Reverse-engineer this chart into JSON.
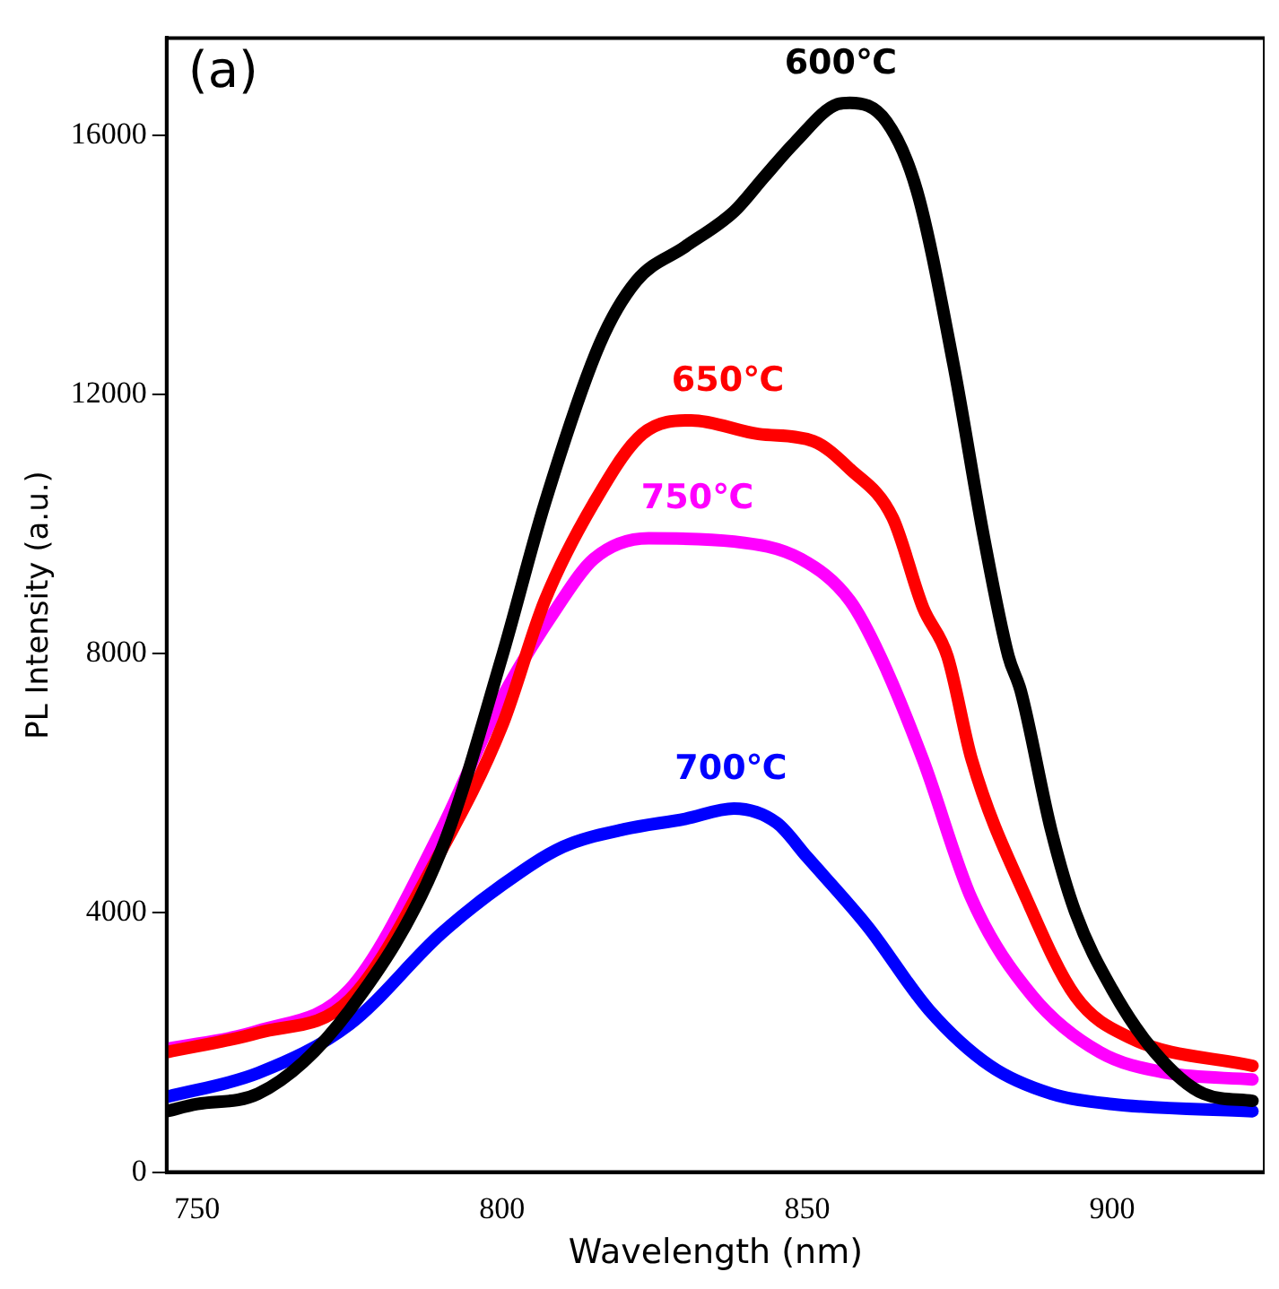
{
  "chart_data": {
    "type": "line",
    "xlabel": "Wavelength (nm)",
    "ylabel": "PL Intensity (a.u.)",
    "annotations": [
      "(a)"
    ],
    "xlim": [
      745,
      925
    ],
    "xticks": [
      750,
      800,
      850,
      900
    ],
    "ylim": [
      0,
      17500
    ],
    "yticks": [
      0,
      4000,
      8000,
      12000,
      16000
    ],
    "grid": false,
    "legend": false,
    "marker": "none",
    "line_style": "solid",
    "series": [
      {
        "name": "600℃",
        "color": "#000000",
        "x": [
          745,
          750,
          760,
          775,
          790,
          800,
          807,
          816,
          822,
          830,
          838,
          843,
          848,
          855,
          857,
          863,
          868,
          874,
          879,
          883,
          885,
          890,
          894,
          900,
          907,
          915,
          923
        ],
        "values": [
          940,
          1050,
          1210,
          2500,
          4960,
          7960,
          10320,
          12780,
          13750,
          14280,
          14820,
          15360,
          15890,
          16480,
          16500,
          16210,
          15140,
          12460,
          9780,
          7960,
          7430,
          5280,
          4000,
          2820,
          1850,
          1210,
          1100
        ]
      },
      {
        "name": "650℃",
        "color": "#ff0000",
        "x": [
          745,
          760,
          775,
          790,
          800,
          807,
          815,
          823,
          831,
          842,
          851,
          857,
          864,
          869,
          873,
          877,
          886,
          894,
          903,
          923
        ],
        "values": [
          1850,
          2150,
          2660,
          4960,
          6890,
          8820,
          10320,
          11390,
          11600,
          11390,
          11280,
          10850,
          10100,
          8710,
          7960,
          6360,
          4210,
          2710,
          2070,
          1640
        ]
      },
      {
        "name": "750℃",
        "color": "#ff00ff",
        "x": [
          745,
          760,
          775,
          790,
          800,
          809,
          815,
          824,
          838,
          849,
          857,
          862,
          869,
          877,
          887,
          898,
          909,
          923
        ],
        "values": [
          1900,
          2180,
          2820,
          5280,
          7320,
          8710,
          9460,
          9780,
          9730,
          9460,
          8820,
          7960,
          6360,
          4210,
          2710,
          1850,
          1530,
          1430
        ]
      },
      {
        "name": "700℃",
        "color": "#0000ff",
        "x": [
          745,
          760,
          775,
          790,
          800,
          810,
          820,
          830,
          838,
          845,
          850,
          860,
          870,
          880,
          890,
          900,
          923
        ],
        "values": [
          1160,
          1530,
          2280,
          3680,
          4430,
          5020,
          5290,
          5450,
          5610,
          5390,
          4860,
          3780,
          2500,
          1640,
          1210,
          1050,
          940
        ]
      }
    ]
  }
}
